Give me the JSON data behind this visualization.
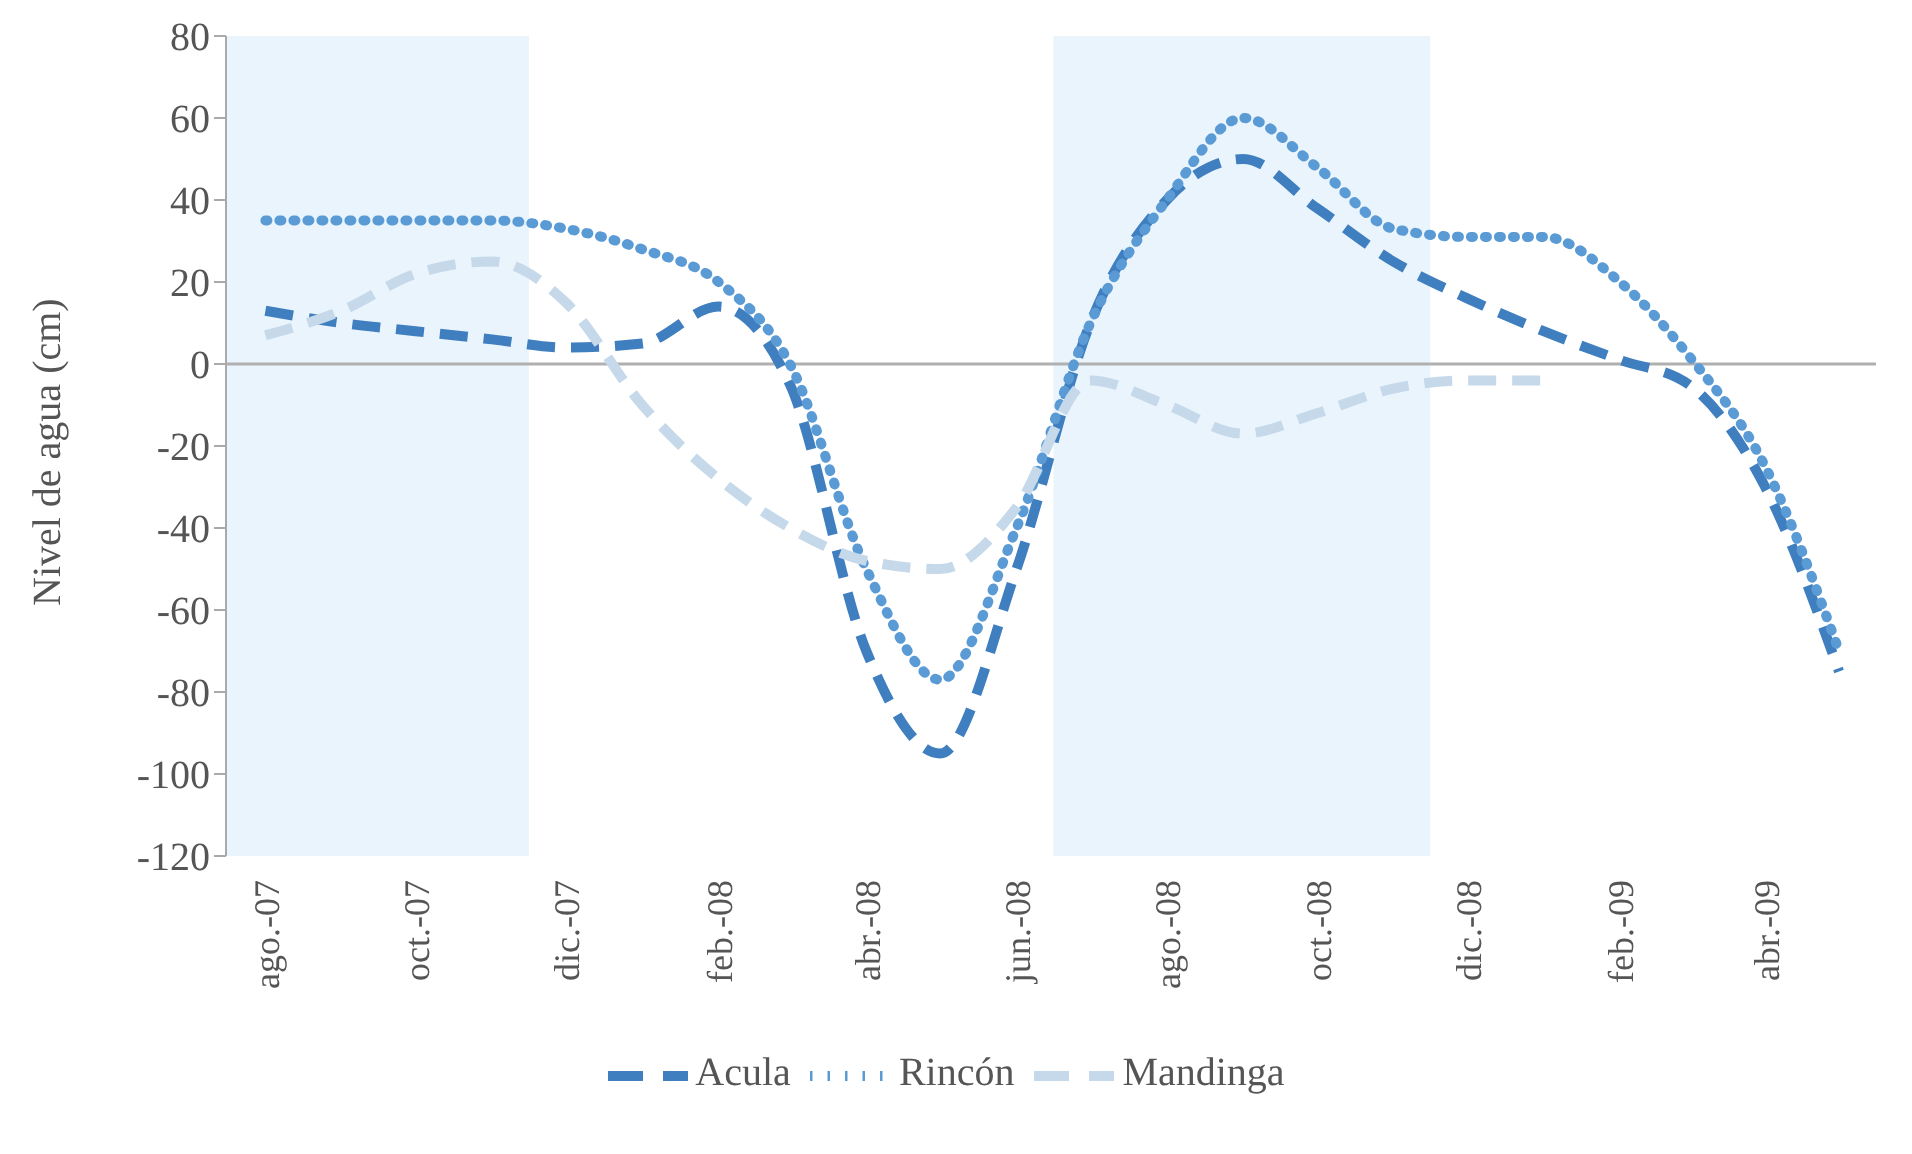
{
  "chart_data": {
    "type": "line",
    "ylabel": "Nivel de agua (cm)",
    "x": [
      "2007-08",
      "2007-09",
      "2007-10",
      "2007-11",
      "2007-12",
      "2008-01",
      "2008-02",
      "2008-03",
      "2008-04",
      "2008-05",
      "2008-06",
      "2008-07",
      "2008-08",
      "2008-09",
      "2008-10",
      "2008-11",
      "2008-12",
      "2009-01",
      "2009-02",
      "2009-03",
      "2009-04",
      "2009-05"
    ],
    "xlim": [
      "2007-07-16",
      "2009-05-16"
    ],
    "xticks": [
      {
        "value": "2007-08",
        "label": "ago.-07"
      },
      {
        "value": "2007-10",
        "label": "oct.-07"
      },
      {
        "value": "2007-12",
        "label": "dic.-07"
      },
      {
        "value": "2008-02",
        "label": "feb.-08"
      },
      {
        "value": "2008-04",
        "label": "abr.-08"
      },
      {
        "value": "2008-06",
        "label": "jun.-08"
      },
      {
        "value": "2008-08",
        "label": "ago.-08"
      },
      {
        "value": "2008-10",
        "label": "oct.-08"
      },
      {
        "value": "2008-12",
        "label": "dic.-08"
      },
      {
        "value": "2009-02",
        "label": "feb.-09"
      },
      {
        "value": "2009-04",
        "label": "abr.-09"
      }
    ],
    "series": [
      {
        "name": "Acula",
        "color": "#3f7fc0",
        "line_style": "dashed",
        "values": [
          13,
          10,
          8,
          6,
          4,
          5,
          14,
          -5,
          -70,
          -95,
          -50,
          10,
          40,
          50,
          38,
          25,
          16,
          8,
          1,
          -5,
          -30,
          -75
        ]
      },
      {
        "name": "Rincón",
        "color": "#5b9bd5",
        "line_style": "dotted",
        "values": [
          35,
          35,
          35,
          35,
          33,
          28,
          20,
          0,
          -50,
          -77,
          -40,
          10,
          40,
          60,
          48,
          33,
          31,
          31,
          20,
          2,
          -25,
          -70
        ]
      },
      {
        "name": "Mandinga",
        "color": "#c5d9ea",
        "line_style": "dashed",
        "values": [
          7,
          13,
          22,
          25,
          15,
          -10,
          -28,
          -40,
          -48,
          -50,
          -35,
          -4,
          -10,
          -17,
          -12,
          -6,
          -4,
          -4,
          null,
          null,
          null,
          null
        ]
      }
    ],
    "bands": [
      {
        "axis": "x",
        "from": "2007-07-16",
        "to": "2007-11-16",
        "color": "#eaf4fc"
      },
      {
        "axis": "x",
        "from": "2008-06-16",
        "to": "2008-11-16",
        "color": "#eaf4fc"
      }
    ],
    "ylim": [
      -120,
      80
    ],
    "yticks": [
      -120,
      -100,
      -80,
      -60,
      -40,
      -20,
      0,
      20,
      40,
      60,
      80
    ],
    "legend": "bottom",
    "marker": "none"
  }
}
